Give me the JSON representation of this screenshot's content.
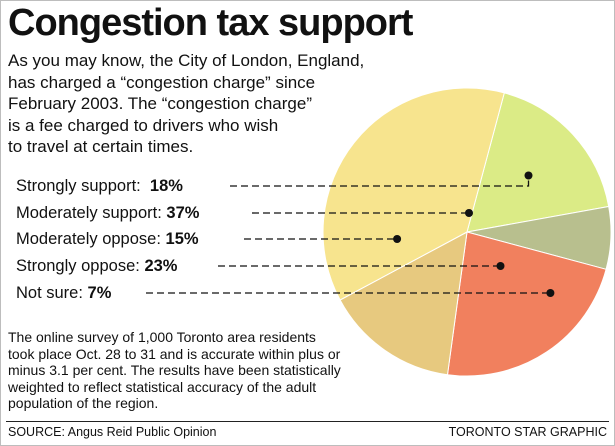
{
  "title": "Congestion tax support",
  "intro_lines": [
    "As you may know, the City of London, England,",
    "has charged a “congestion charge” since",
    "February 2003. The “congestion charge”",
    "is a fee charged to drivers who wish",
    "to travel at certain times."
  ],
  "chart_data": {
    "type": "pie",
    "title": "Congestion tax support",
    "categories": [
      "Strongly support",
      "Moderately support",
      "Moderately oppose",
      "Strongly oppose",
      "Not sure"
    ],
    "values": [
      18,
      37,
      15,
      23,
      7
    ],
    "value_labels": [
      "18%",
      "37%",
      "15%",
      "23%",
      "7%"
    ],
    "legend_labels": [
      "Strongly support:",
      "Moderately support:",
      "Moderately oppose:",
      "Strongly oppose:",
      "Not sure:"
    ],
    "colors": [
      "#dbeb86",
      "#f7e48e",
      "#e7c97f",
      "#f1805e",
      "#b8bf8e"
    ],
    "unit": "%"
  },
  "footnote_lines": [
    "The online survey of 1,000 Toronto area residents",
    "took place Oct. 28 to 31 and is accurate within plus or",
    "minus 3.1 per cent. The results have been statistically",
    "weighted to reflect statistical accuracy of the adult",
    "population of the region."
  ],
  "source": "SOURCE: Angus Reid Public Opinion",
  "credit": "TORONTO STAR GRAPHIC"
}
